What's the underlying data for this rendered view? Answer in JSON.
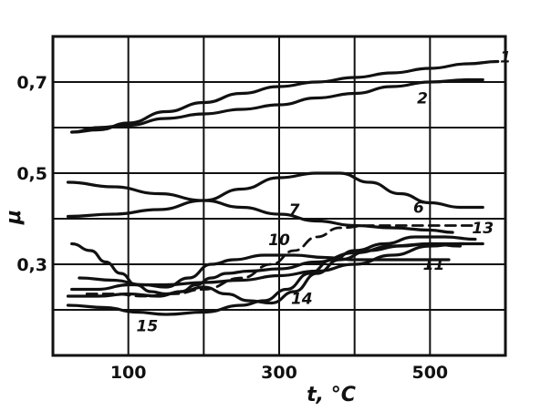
{
  "chart_data": {
    "type": "line",
    "xlabel": "t, °C",
    "ylabel": "μ",
    "xlim": [
      0,
      600
    ],
    "ylim": [
      0.1,
      0.8
    ],
    "x_ticks": [
      {
        "value": 100,
        "label": "100"
      },
      {
        "value": 300,
        "label": "300"
      },
      {
        "value": 500,
        "label": "500"
      }
    ],
    "y_ticks": [
      {
        "value": 0.7,
        "label": "0,7"
      },
      {
        "value": 0.5,
        "label": "0,5"
      },
      {
        "value": 0.3,
        "label": "0,3"
      }
    ],
    "x_grid": [
      100,
      200,
      300,
      400,
      500
    ],
    "y_grid": [
      0.2,
      0.3,
      0.4,
      0.5,
      0.6,
      0.7
    ],
    "grid": true,
    "series": [
      {
        "name": "1",
        "style": "solid",
        "points": [
          [
            25,
            0.59
          ],
          [
            60,
            0.595
          ],
          [
            100,
            0.61
          ],
          [
            150,
            0.635
          ],
          [
            200,
            0.655
          ],
          [
            250,
            0.675
          ],
          [
            300,
            0.69
          ],
          [
            350,
            0.7
          ],
          [
            400,
            0.71
          ],
          [
            450,
            0.72
          ],
          [
            500,
            0.73
          ],
          [
            550,
            0.74
          ],
          [
            590,
            0.745
          ]
        ],
        "label_at": [
          600,
          0.755
        ]
      },
      {
        "name": "2",
        "style": "solid",
        "points": [
          [
            25,
            0.59
          ],
          [
            60,
            0.6
          ],
          [
            100,
            0.605
          ],
          [
            150,
            0.62
          ],
          [
            200,
            0.63
          ],
          [
            250,
            0.64
          ],
          [
            300,
            0.65
          ],
          [
            350,
            0.665
          ],
          [
            400,
            0.675
          ],
          [
            450,
            0.69
          ],
          [
            500,
            0.7
          ],
          [
            550,
            0.705
          ],
          [
            570,
            0.705
          ]
        ],
        "label_at": [
          490,
          0.665
        ]
      },
      {
        "name": "6",
        "style": "solid",
        "points": [
          [
            20,
            0.405
          ],
          [
            80,
            0.41
          ],
          [
            140,
            0.42
          ],
          [
            200,
            0.44
          ],
          [
            250,
            0.465
          ],
          [
            300,
            0.49
          ],
          [
            350,
            0.5
          ],
          [
            380,
            0.5
          ],
          [
            420,
            0.48
          ],
          [
            460,
            0.455
          ],
          [
            500,
            0.435
          ],
          [
            540,
            0.425
          ],
          [
            570,
            0.425
          ]
        ],
        "label_at": [
          485,
          0.425
        ]
      },
      {
        "name": "7",
        "style": "solid",
        "points": [
          [
            20,
            0.48
          ],
          [
            80,
            0.47
          ],
          [
            140,
            0.455
          ],
          [
            200,
            0.44
          ],
          [
            250,
            0.425
          ],
          [
            300,
            0.41
          ],
          [
            350,
            0.395
          ],
          [
            400,
            0.385
          ],
          [
            450,
            0.38
          ],
          [
            500,
            0.375
          ],
          [
            530,
            0.37
          ]
        ],
        "label_at": [
          320,
          0.42
        ]
      },
      {
        "name": "10",
        "style": "dashed",
        "points": [
          [
            45,
            0.235
          ],
          [
            80,
            0.235
          ],
          [
            120,
            0.23
          ],
          [
            160,
            0.235
          ],
          [
            200,
            0.245
          ],
          [
            250,
            0.27
          ],
          [
            290,
            0.3
          ],
          [
            320,
            0.33
          ],
          [
            350,
            0.36
          ],
          [
            380,
            0.38
          ],
          [
            420,
            0.385
          ],
          [
            470,
            0.385
          ],
          [
            520,
            0.385
          ],
          [
            560,
            0.385
          ]
        ],
        "label_at": [
          300,
          0.354
        ]
      },
      {
        "name": "11",
        "style": "solid",
        "points": [
          [
            35,
            0.27
          ],
          [
            80,
            0.265
          ],
          [
            120,
            0.255
          ],
          [
            150,
            0.25
          ],
          [
            180,
            0.27
          ],
          [
            210,
            0.3
          ],
          [
            240,
            0.31
          ],
          [
            280,
            0.32
          ],
          [
            320,
            0.32
          ],
          [
            360,
            0.315
          ],
          [
            400,
            0.31
          ],
          [
            450,
            0.31
          ],
          [
            500,
            0.31
          ],
          [
            525,
            0.31
          ]
        ],
        "label_at": [
          505,
          0.3
        ]
      },
      {
        "name": "13",
        "style": "solid",
        "points": [
          [
            25,
            0.245
          ],
          [
            60,
            0.245
          ],
          [
            100,
            0.255
          ],
          [
            150,
            0.255
          ],
          [
            200,
            0.26
          ],
          [
            250,
            0.265
          ],
          [
            300,
            0.275
          ],
          [
            350,
            0.285
          ],
          [
            400,
            0.3
          ],
          [
            450,
            0.32
          ],
          [
            500,
            0.34
          ],
          [
            540,
            0.345
          ],
          [
            570,
            0.345
          ]
        ],
        "label_at": [
          570,
          0.38
        ]
      },
      {
        "name": "14",
        "style": "solid",
        "points": [
          [
            20,
            0.23
          ],
          [
            60,
            0.23
          ],
          [
            100,
            0.235
          ],
          [
            140,
            0.23
          ],
          [
            170,
            0.24
          ],
          [
            200,
            0.25
          ],
          [
            230,
            0.235
          ],
          [
            260,
            0.22
          ],
          [
            290,
            0.215
          ],
          [
            320,
            0.24
          ],
          [
            350,
            0.28
          ],
          [
            380,
            0.31
          ],
          [
            420,
            0.33
          ],
          [
            460,
            0.34
          ],
          [
            500,
            0.345
          ],
          [
            545,
            0.345
          ]
        ],
        "label_at": [
          330,
          0.225
        ]
      },
      {
        "name": "15",
        "style": "solid",
        "points": [
          [
            25,
            0.345
          ],
          [
            50,
            0.33
          ],
          [
            70,
            0.305
          ],
          [
            90,
            0.28
          ],
          [
            110,
            0.255
          ],
          [
            130,
            0.24
          ],
          [
            150,
            0.235
          ],
          [
            170,
            0.24
          ],
          [
            190,
            0.255
          ],
          [
            210,
            0.27
          ],
          [
            230,
            0.28
          ],
          [
            260,
            0.285
          ],
          [
            300,
            0.29
          ],
          [
            350,
            0.305
          ],
          [
            400,
            0.325
          ],
          [
            450,
            0.34
          ],
          [
            500,
            0.345
          ],
          [
            540,
            0.34
          ]
        ],
        "label_at": [
          125,
          0.165
        ]
      },
      {
        "name": "",
        "style": "solid",
        "points": [
          [
            20,
            0.21
          ],
          [
            70,
            0.205
          ],
          [
            110,
            0.195
          ],
          [
            150,
            0.19
          ],
          [
            200,
            0.195
          ],
          [
            250,
            0.21
          ],
          [
            280,
            0.22
          ],
          [
            310,
            0.245
          ],
          [
            340,
            0.28
          ],
          [
            370,
            0.31
          ],
          [
            400,
            0.33
          ],
          [
            440,
            0.345
          ],
          [
            480,
            0.36
          ],
          [
            520,
            0.36
          ],
          [
            560,
            0.355
          ]
        ],
        "label_at": null
      }
    ]
  }
}
